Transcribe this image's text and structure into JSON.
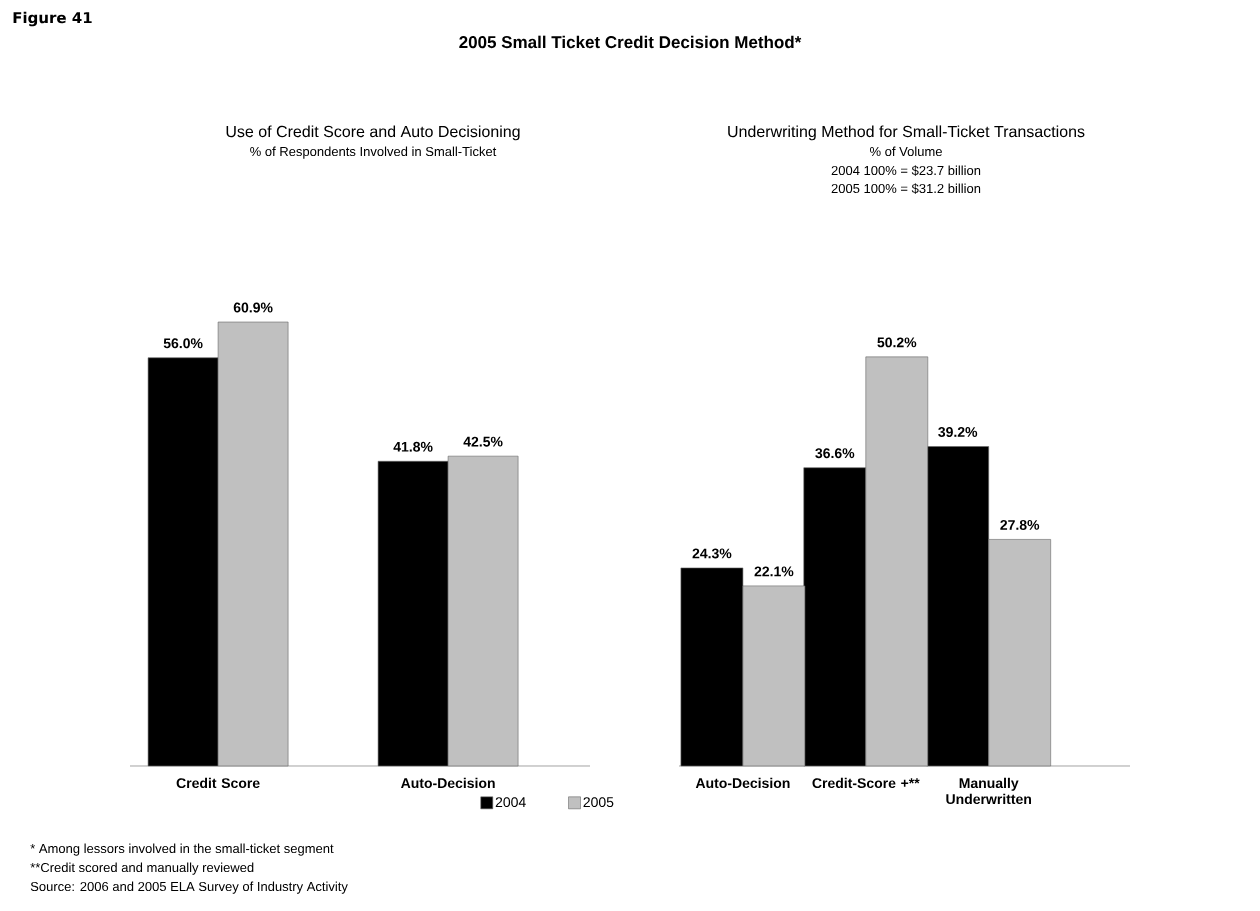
{
  "chart_data": [
    {
      "type": "bar",
      "title": "Use of Credit Score and Auto Decisioning",
      "subtitle": "% of Respondents Involved in Small-Ticket",
      "categories": [
        "Credit Score",
        "Auto-Decision"
      ],
      "series": [
        {
          "color": "#000000",
          "values": [
            56.0,
            41.8
          ],
          "value_labels": [
            "56.0%",
            "41.8%"
          ]
        },
        {
          "color": "#c0c0c0",
          "values": [
            60.9,
            42.5
          ],
          "value_labels": [
            "60.9%",
            "42.5%"
          ]
        }
      ],
      "annotations": [
        "Figure 41",
        "2005 Small Ticket Credit Decision Method*",
        "*  Among lessors involved in the small-ticket segment",
        "**Credit scored and manually reviewed",
        "Source: 2006 and 2005 ELA Survey of Industry Activity"
      ]
    },
    {
      "type": "bar",
      "title": "Underwriting Method for Small-Ticket Transactions",
      "subtitle": "% of Volume",
      "categories": [
        "Auto-Decision",
        "Credit-Score +**",
        "Manually Underwritten"
      ],
      "series": [
        {
          "name": "2004",
          "color": "#000000",
          "values": [
            24.3,
            36.6,
            39.2
          ],
          "value_labels": [
            "24.3%",
            "36.6%",
            "39.2%"
          ]
        },
        {
          "name": "2005",
          "color": "#c0c0c0",
          "values": [
            22.1,
            50.2,
            27.8
          ],
          "value_labels": [
            "22.1%",
            "50.2%",
            "27.8%"
          ]
        }
      ],
      "legend": "bottom left",
      "annotations": [
        "2004 100% = $23.7 billion",
        "2005 100% = $31.2 billion"
      ]
    }
  ]
}
